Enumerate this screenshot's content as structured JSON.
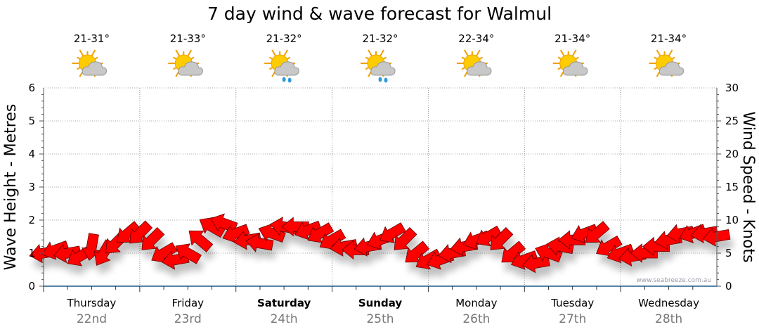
{
  "chart_data": {
    "type": "scatter",
    "title": "7 day wind & wave forecast for Walmul",
    "ylabel_left": "Wave Height - Metres",
    "ylabel_right": "Wind Speed - Knots",
    "ylim_left": [
      0,
      6
    ],
    "ylim_right": [
      0,
      30
    ],
    "yticks_left": [
      "0",
      "1",
      "2",
      "3",
      "4",
      "5",
      "6"
    ],
    "yticks_right": [
      "0",
      "5",
      "10",
      "15",
      "20",
      "25",
      "30"
    ],
    "grid": true,
    "watermark": "www.seabreeze.com.au",
    "days": [
      {
        "name": "Thursday",
        "date": "22nd",
        "temp": "21-31°",
        "icon": "sun-cloud",
        "bold": false
      },
      {
        "name": "Friday",
        "date": "23rd",
        "temp": "21-33°",
        "icon": "sun-cloud",
        "bold": false
      },
      {
        "name": "Saturday",
        "date": "24th",
        "temp": "21-32°",
        "icon": "sun-cloud-rain",
        "bold": true
      },
      {
        "name": "Sunday",
        "date": "25th",
        "temp": "21-32°",
        "icon": "sun-cloud-rain",
        "bold": true
      },
      {
        "name": "Monday",
        "date": "26th",
        "temp": "22-34°",
        "icon": "sun-cloud",
        "bold": false
      },
      {
        "name": "Tuesday",
        "date": "27th",
        "temp": "21-34°",
        "icon": "sun-cloud",
        "bold": false
      },
      {
        "name": "Wednesday",
        "date": "28th",
        "temp": "21-34°",
        "icon": "sun-cloud",
        "bold": false
      }
    ],
    "wind_interval_hours": 3,
    "wind_speed_knots": [
      5,
      5.5,
      5,
      4.5,
      6,
      5,
      6.5,
      8,
      8,
      7,
      5,
      4,
      5,
      7,
      9,
      9.5,
      8,
      7,
      6.5,
      8,
      9,
      9,
      8.5,
      8,
      7,
      6,
      5.5,
      6,
      7,
      8,
      7,
      5,
      4,
      4,
      5,
      6,
      7,
      7.5,
      7,
      5,
      4,
      3.5,
      5,
      6,
      7,
      8,
      8,
      6,
      5,
      4.5,
      5,
      6,
      7,
      8,
      8,
      8,
      7.5
    ],
    "wind_direction_from_deg": [
      80,
      70,
      80,
      60,
      10,
      30,
      45,
      50,
      45,
      45,
      60,
      80,
      120,
      130,
      120,
      110,
      70,
      80,
      100,
      110,
      100,
      90,
      70,
      60,
      60,
      80,
      90,
      80,
      70,
      60,
      45,
      50,
      60,
      70,
      80,
      80,
      70,
      60,
      45,
      50,
      70,
      80,
      110,
      100,
      90,
      70,
      50,
      60,
      70,
      80,
      90,
      90,
      80,
      80,
      70,
      80,
      80
    ],
    "arrow_color": "#ff0000"
  }
}
